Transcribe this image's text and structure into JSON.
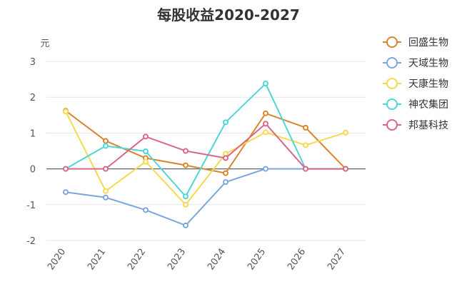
{
  "chart_data": {
    "type": "line",
    "title": "每股收益2020-2027",
    "ylabel": "元",
    "xlabel": "",
    "ylim": [
      -2,
      3
    ],
    "yticks": [
      "3",
      "2",
      "1",
      "0",
      "-1",
      "-2"
    ],
    "categories": [
      "2020",
      "2021",
      "2022",
      "2023",
      "2024",
      "2025",
      "2026",
      "2027"
    ],
    "grid": true,
    "legend_position": "right",
    "series": [
      {
        "name": "回盛生物",
        "color": "#d7862e",
        "values": [
          1.62,
          0.78,
          0.3,
          0.1,
          -0.12,
          1.55,
          1.15,
          0.0
        ]
      },
      {
        "name": "天域生物",
        "color": "#7ca6dc",
        "values": [
          -0.65,
          -0.8,
          -1.15,
          -1.58,
          -0.37,
          0.0,
          0.0,
          0.0
        ]
      },
      {
        "name": "天康生物",
        "color": "#f6d951",
        "values": [
          1.6,
          -0.62,
          0.2,
          -1.0,
          0.42,
          1.02,
          0.66,
          1.01
        ]
      },
      {
        "name": "神农集团",
        "color": "#4fd6d8",
        "values": [
          0.0,
          0.64,
          0.49,
          -0.77,
          1.3,
          2.38,
          0.0,
          0.0
        ]
      },
      {
        "name": "邦基科技",
        "color": "#dc6687",
        "values": [
          0.0,
          0.0,
          0.9,
          0.5,
          0.3,
          1.26,
          0.0,
          0.0
        ]
      }
    ]
  }
}
